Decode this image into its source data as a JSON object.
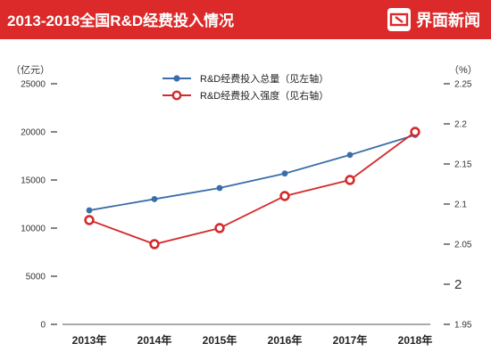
{
  "header": {
    "title": "2013-2018全国R&D经费投入情况",
    "brand_name": "界面新闻",
    "background_color": "#dc2a2a",
    "logo_icon": "jiemian-logo-icon"
  },
  "chart_data": {
    "type": "line",
    "categories": [
      "2013年",
      "2014年",
      "2015年",
      "2016年",
      "2017年",
      "2018年"
    ],
    "series": [
      {
        "name": "R&D经费投入总量（见左轴）",
        "axis": "left",
        "color": "#3a6ea8",
        "marker": "filled-circle",
        "values": [
          11846.6,
          13015.6,
          14169.9,
          15676.7,
          17606.1,
          19677.9
        ]
      },
      {
        "name": "R&D经费投入强度（见右轴）",
        "axis": "right",
        "color": "#d42b2b",
        "marker": "hollow-circle",
        "values": [
          2.08,
          2.05,
          2.07,
          2.11,
          2.13,
          2.19
        ]
      }
    ],
    "left_axis": {
      "unit": "（亿元）",
      "ylim": [
        0,
        25000
      ],
      "ticks": [
        0,
        5000,
        10000,
        15000,
        20000,
        25000
      ],
      "tick_labels": [
        "0",
        "5000",
        "10000",
        "15000",
        "20000",
        "25000"
      ]
    },
    "right_axis": {
      "unit": "（%）",
      "ylim": [
        1.95,
        2.25
      ],
      "ticks": [
        1.95,
        2,
        2.05,
        2.1,
        2.15,
        2.2,
        2.25
      ],
      "tick_labels": [
        "1.95",
        "2",
        "2.05",
        "2.1",
        "2.15",
        "2.2",
        "2.25"
      ]
    },
    "grid": false,
    "legend_position": "top-center"
  }
}
